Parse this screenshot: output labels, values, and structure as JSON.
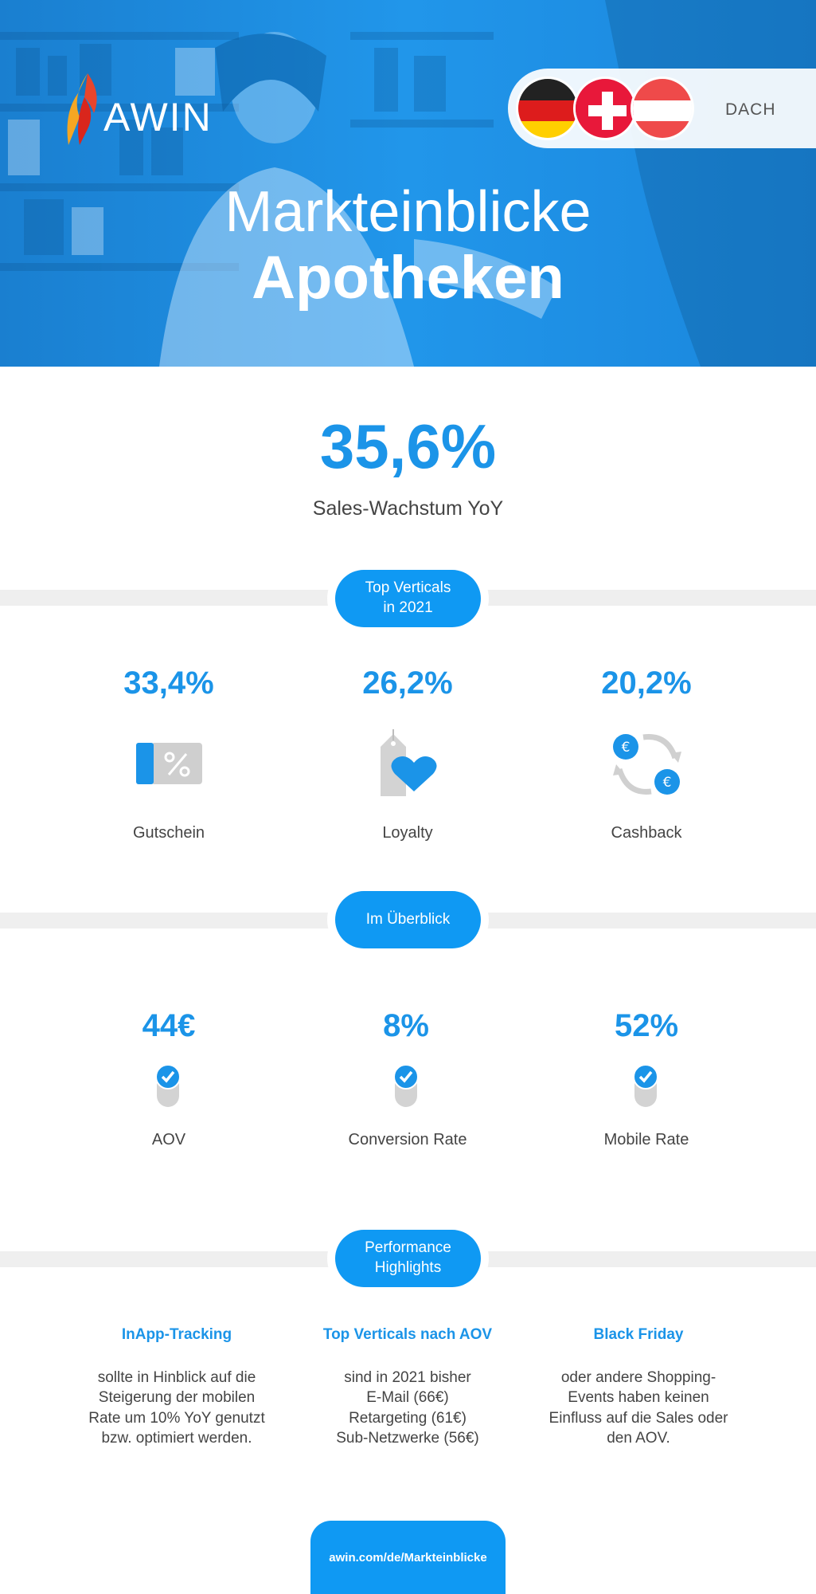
{
  "hero": {
    "logo_text": "AWIN",
    "region": "DACH",
    "title_light": "Markteinblicke",
    "title_bold": "Apotheken"
  },
  "headline_stat": {
    "value": "35,6%",
    "label": "Sales-Wachstum YoY"
  },
  "top_verticals": {
    "section_label": "Top Verticals in 2021",
    "section_label_line1": "Top Verticals",
    "section_label_line2": "in 2021",
    "items": [
      {
        "value": "33,4%",
        "label": "Gutschein",
        "icon": "voucher-icon"
      },
      {
        "value": "26,2%",
        "label": "Loyalty",
        "icon": "heart-tag-icon"
      },
      {
        "value": "20,2%",
        "label": "Cashback",
        "icon": "euro-cycle-icon"
      }
    ]
  },
  "overview": {
    "section_label": "Im Überblick",
    "items": [
      {
        "value": "44€",
        "label": "AOV"
      },
      {
        "value": "8%",
        "label": "Conversion Rate"
      },
      {
        "value": "52%",
        "label": "Mobile Rate"
      }
    ]
  },
  "performance": {
    "section_label_line1": "Performance",
    "section_label_line2": "Highlights",
    "items": [
      {
        "title": "InApp-Tracking",
        "lines": [
          "sollte in Hinblick auf die",
          "Steigerung der mobilen",
          "Rate um 10% YoY genutzt",
          "bzw. optimiert werden."
        ]
      },
      {
        "title": "Top Verticals nach AOV",
        "lines": [
          "sind in 2021 bisher",
          "E-Mail (66€)",
          "Retargeting (61€)",
          "Sub-Netzwerke (56€)"
        ]
      },
      {
        "title": "Black Friday",
        "lines": [
          "oder andere Shopping-",
          "Events haben keinen",
          "Einfluss auf die Sales oder",
          "den AOV."
        ]
      }
    ]
  },
  "footer": {
    "link": "awin.com/de/Markteinblicke"
  },
  "colors": {
    "accent": "#0f99f3",
    "stat_blue": "#1b94e8",
    "bar_grey": "#efefef"
  }
}
